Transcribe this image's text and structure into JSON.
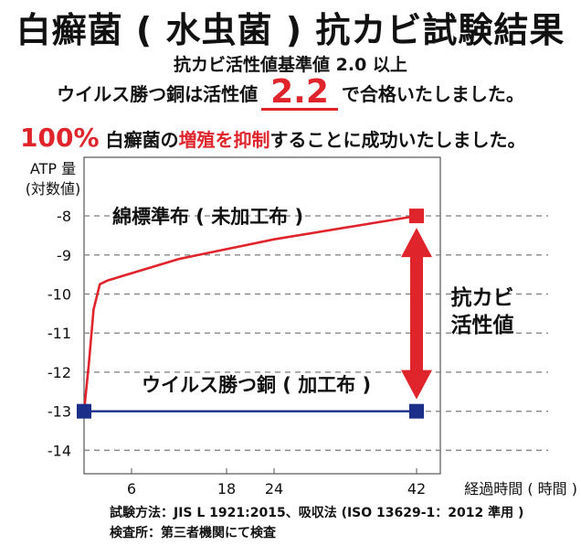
{
  "header": {
    "title": "白癬菌 ( 水虫菌 ) 抗カビ試験結果",
    "subtitle": "抗カビ活性値基準値 2.0 以上",
    "result_prefix": "ウイルス勝つ銅は活性値",
    "result_value": "2.2",
    "result_suffix": "で合格いたしました。",
    "summary_pct": "100%",
    "summary_a": "白癬菌の",
    "summary_highlight": "増殖を抑制",
    "summary_b": "することに成功いたしました。"
  },
  "colors": {
    "accent_red": "#e0242b",
    "cotton_line": "#e0242b",
    "copper_line": "#1a2e8a",
    "grid": "#888888"
  },
  "chart_data": {
    "type": "line",
    "ylabel": "ATP 量\n(対数値)",
    "xlabel": "経過時間 ( 時間 )",
    "x_ticks": [
      6,
      18,
      24,
      42
    ],
    "y_ticks": [
      -8,
      -9,
      -10,
      -11,
      -12,
      -13,
      -14
    ],
    "ylim": [
      -14.6,
      -6.5
    ],
    "xlim": [
      0,
      45
    ],
    "series": [
      {
        "name": "綿標準布 ( 未加工布 )",
        "color": "#e0242b",
        "points": [
          [
            0,
            -13
          ],
          [
            0.6,
            -11.8
          ],
          [
            1.2,
            -10.4
          ],
          [
            2.0,
            -9.75
          ],
          [
            3,
            -9.65
          ],
          [
            12,
            -9.1
          ],
          [
            24,
            -8.6
          ],
          [
            36,
            -8.2
          ],
          [
            42,
            -8
          ]
        ]
      },
      {
        "name": "ウイルス勝つ銅 ( 加工布 )",
        "color": "#1a2e8a",
        "points": [
          [
            0,
            -13
          ],
          [
            42,
            -13
          ]
        ]
      }
    ],
    "annotation": "抗カビ\n活性値"
  },
  "footer": {
    "method": "試験方法：JIS L 1921:2015、吸収法 (ISO 13629-1：2012 準用 )",
    "inspector": "検査所：第三者機関にて検査"
  }
}
